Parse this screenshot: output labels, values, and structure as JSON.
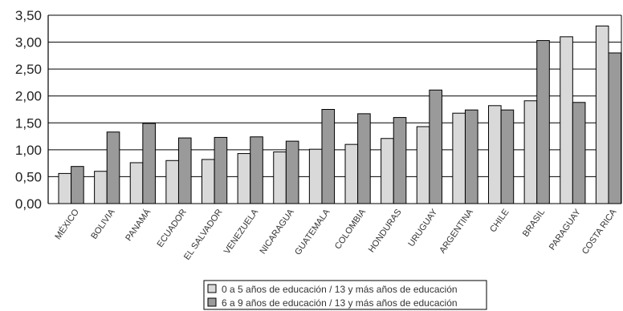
{
  "chart_data": {
    "type": "bar",
    "categories": [
      "MÉXICO",
      "BOLIVIA",
      "PANAMÁ",
      "ECUADOR",
      "EL SALVADOR",
      "VENEZUELA",
      "NICARAGUA",
      "GUATEMALA",
      "COLOMBIA",
      "HONDURAS",
      "URUGUAY",
      "ARGENTINA",
      "CHILE",
      "BRASIL",
      "PARAGUAY",
      "COSTA RICA"
    ],
    "series": [
      {
        "name": "0 a 5 años de educación / 13 y más años de educación",
        "color": "#d9d9d9",
        "values": [
          0.56,
          0.6,
          0.76,
          0.8,
          0.82,
          0.93,
          0.96,
          1.01,
          1.1,
          1.21,
          1.43,
          1.68,
          1.82,
          1.91,
          3.1,
          3.3
        ]
      },
      {
        "name": "6 a 9 años de educación / 13 y más años de educación",
        "color": "#9a9a9a",
        "values": [
          0.69,
          1.33,
          1.49,
          1.22,
          1.23,
          1.24,
          1.16,
          1.75,
          1.67,
          1.6,
          2.11,
          1.74,
          1.74,
          3.03,
          1.88,
          2.8
        ]
      }
    ],
    "yticks": [
      "0,00",
      "0,50",
      "1,00",
      "1,50",
      "2,00",
      "2,50",
      "3,00",
      "3,50"
    ],
    "ylim": [
      0,
      3.5
    ],
    "grid": true,
    "legend_position": "bottom-center"
  }
}
